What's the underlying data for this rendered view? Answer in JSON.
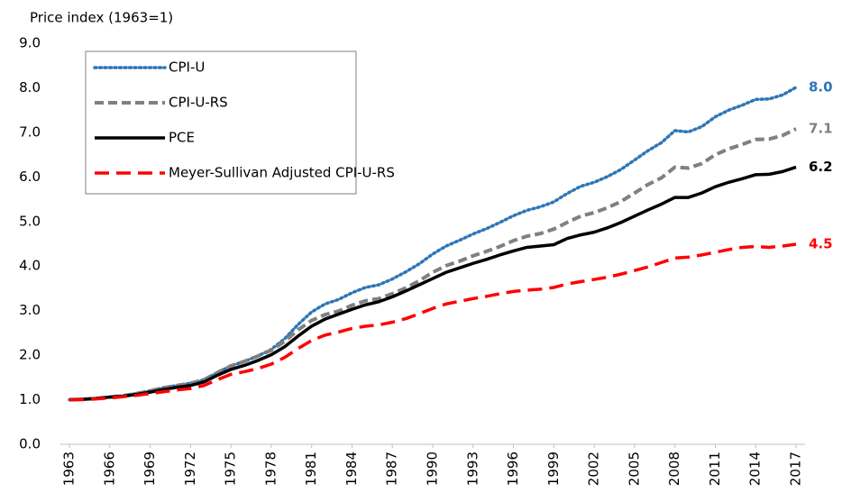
{
  "chart_data": {
    "type": "line",
    "y_axis_label": "Price index (1963=1)",
    "x": [
      1963,
      1964,
      1965,
      1966,
      1967,
      1968,
      1969,
      1970,
      1971,
      1972,
      1973,
      1974,
      1975,
      1976,
      1977,
      1978,
      1979,
      1980,
      1981,
      1982,
      1983,
      1984,
      1985,
      1986,
      1987,
      1988,
      1989,
      1990,
      1991,
      1992,
      1993,
      1994,
      1995,
      1996,
      1997,
      1998,
      1999,
      2000,
      2001,
      2002,
      2003,
      2004,
      2005,
      2006,
      2007,
      2008,
      2009,
      2010,
      2011,
      2012,
      2013,
      2014,
      2015,
      2016,
      2017
    ],
    "xlim": [
      1963,
      2017
    ],
    "xticks": [
      1963,
      1966,
      1969,
      1972,
      1975,
      1978,
      1981,
      1984,
      1987,
      1990,
      1993,
      1996,
      1999,
      2002,
      2005,
      2008,
      2011,
      2014,
      2017
    ],
    "ylim": [
      0,
      9
    ],
    "yticks": [
      {
        "value": 0,
        "label": "0.0"
      },
      {
        "value": 1,
        "label": "1.0"
      },
      {
        "value": 2,
        "label": "2.0"
      },
      {
        "value": 3,
        "label": "3.0"
      },
      {
        "value": 4,
        "label": "4.0"
      },
      {
        "value": 5,
        "label": "5.0"
      },
      {
        "value": 6,
        "label": "6.0"
      },
      {
        "value": 7,
        "label": "7.0"
      },
      {
        "value": 8,
        "label": "8.0"
      },
      {
        "value": 9,
        "label": "9.0"
      }
    ],
    "grid": false,
    "legend": "upper left",
    "series": [
      {
        "name": "CPI-U",
        "color": "#2e75b6",
        "style": "dotted",
        "values": [
          1.0,
          1.01,
          1.03,
          1.06,
          1.09,
          1.14,
          1.2,
          1.27,
          1.32,
          1.37,
          1.45,
          1.61,
          1.76,
          1.86,
          1.98,
          2.13,
          2.37,
          2.69,
          2.97,
          3.15,
          3.25,
          3.4,
          3.52,
          3.58,
          3.71,
          3.87,
          4.05,
          4.27,
          4.45,
          4.58,
          4.72,
          4.84,
          4.98,
          5.13,
          5.25,
          5.33,
          5.44,
          5.63,
          5.79,
          5.88,
          6.01,
          6.17,
          6.38,
          6.59,
          6.77,
          7.04,
          7.01,
          7.13,
          7.35,
          7.5,
          7.61,
          7.74,
          7.75,
          7.84,
          8.01
        ],
        "value_labels": [
          null,
          null,
          null,
          null,
          null,
          null,
          null,
          null,
          null,
          null,
          null,
          null,
          null,
          null,
          null,
          null,
          null,
          null,
          null,
          null,
          null,
          null,
          null,
          null,
          null,
          null,
          null,
          null,
          null,
          null,
          null,
          null,
          null,
          null,
          null,
          null,
          null,
          null,
          null,
          null,
          null,
          null,
          null,
          null,
          null,
          null,
          null,
          null,
          null,
          null,
          null,
          null,
          null,
          null,
          "8.0"
        ]
      },
      {
        "name": "CPI-U-RS",
        "color": "#808080",
        "style": "dashed",
        "values": [
          1.0,
          1.01,
          1.03,
          1.06,
          1.09,
          1.14,
          1.2,
          1.27,
          1.32,
          1.37,
          1.45,
          1.61,
          1.76,
          1.86,
          1.98,
          2.11,
          2.31,
          2.57,
          2.78,
          2.91,
          2.99,
          3.12,
          3.22,
          3.27,
          3.38,
          3.51,
          3.67,
          3.86,
          4.01,
          4.11,
          4.23,
          4.33,
          4.44,
          4.57,
          4.67,
          4.73,
          4.83,
          4.98,
          5.12,
          5.2,
          5.31,
          5.45,
          5.64,
          5.83,
          5.98,
          6.22,
          6.2,
          6.3,
          6.5,
          6.63,
          6.73,
          6.84,
          6.85,
          6.93,
          7.08
        ],
        "value_labels": [
          null,
          null,
          null,
          null,
          null,
          null,
          null,
          null,
          null,
          null,
          null,
          null,
          null,
          null,
          null,
          null,
          null,
          null,
          null,
          null,
          null,
          null,
          null,
          null,
          null,
          null,
          null,
          null,
          null,
          null,
          null,
          null,
          null,
          null,
          null,
          null,
          null,
          null,
          null,
          null,
          null,
          null,
          null,
          null,
          null,
          null,
          null,
          null,
          null,
          null,
          null,
          null,
          null,
          null,
          "7.1"
        ]
      },
      {
        "name": "PCE",
        "color": "#000000",
        "style": "solid",
        "values": [
          1.0,
          1.01,
          1.03,
          1.06,
          1.08,
          1.12,
          1.17,
          1.23,
          1.28,
          1.32,
          1.4,
          1.55,
          1.68,
          1.77,
          1.88,
          2.01,
          2.19,
          2.43,
          2.65,
          2.81,
          2.92,
          3.03,
          3.13,
          3.2,
          3.31,
          3.44,
          3.58,
          3.72,
          3.86,
          3.96,
          4.06,
          4.15,
          4.25,
          4.34,
          4.42,
          4.45,
          4.48,
          4.62,
          4.7,
          4.76,
          4.86,
          4.98,
          5.12,
          5.26,
          5.39,
          5.54,
          5.54,
          5.64,
          5.78,
          5.88,
          5.96,
          6.05,
          6.06,
          6.12,
          6.22
        ],
        "value_labels": [
          null,
          null,
          null,
          null,
          null,
          null,
          null,
          null,
          null,
          null,
          null,
          null,
          null,
          null,
          null,
          null,
          null,
          null,
          null,
          null,
          null,
          null,
          null,
          null,
          null,
          null,
          null,
          null,
          null,
          null,
          null,
          null,
          null,
          null,
          null,
          null,
          null,
          null,
          null,
          null,
          null,
          null,
          null,
          null,
          null,
          null,
          null,
          null,
          null,
          null,
          null,
          null,
          null,
          null,
          "6.2"
        ]
      },
      {
        "name": "Meyer-Sullivan Adjusted CPI-U-RS",
        "color": "#ff0000",
        "style": "longdash",
        "values": [
          1.0,
          1.0,
          1.02,
          1.04,
          1.07,
          1.1,
          1.14,
          1.18,
          1.22,
          1.25,
          1.32,
          1.45,
          1.57,
          1.63,
          1.7,
          1.8,
          1.95,
          2.15,
          2.33,
          2.45,
          2.52,
          2.6,
          2.65,
          2.68,
          2.74,
          2.82,
          2.93,
          3.05,
          3.15,
          3.21,
          3.27,
          3.32,
          3.38,
          3.43,
          3.46,
          3.48,
          3.52,
          3.6,
          3.65,
          3.7,
          3.75,
          3.82,
          3.9,
          3.98,
          4.08,
          4.18,
          4.2,
          4.25,
          4.31,
          4.37,
          4.42,
          4.44,
          4.42,
          4.45,
          4.49
        ],
        "value_labels": [
          null,
          null,
          null,
          null,
          null,
          null,
          null,
          null,
          null,
          null,
          null,
          null,
          null,
          null,
          null,
          null,
          null,
          null,
          null,
          null,
          null,
          null,
          null,
          null,
          null,
          null,
          null,
          null,
          null,
          null,
          null,
          null,
          null,
          null,
          null,
          null,
          null,
          null,
          null,
          null,
          null,
          null,
          null,
          null,
          null,
          null,
          null,
          null,
          null,
          null,
          null,
          null,
          null,
          null,
          "4.5"
        ]
      }
    ]
  }
}
